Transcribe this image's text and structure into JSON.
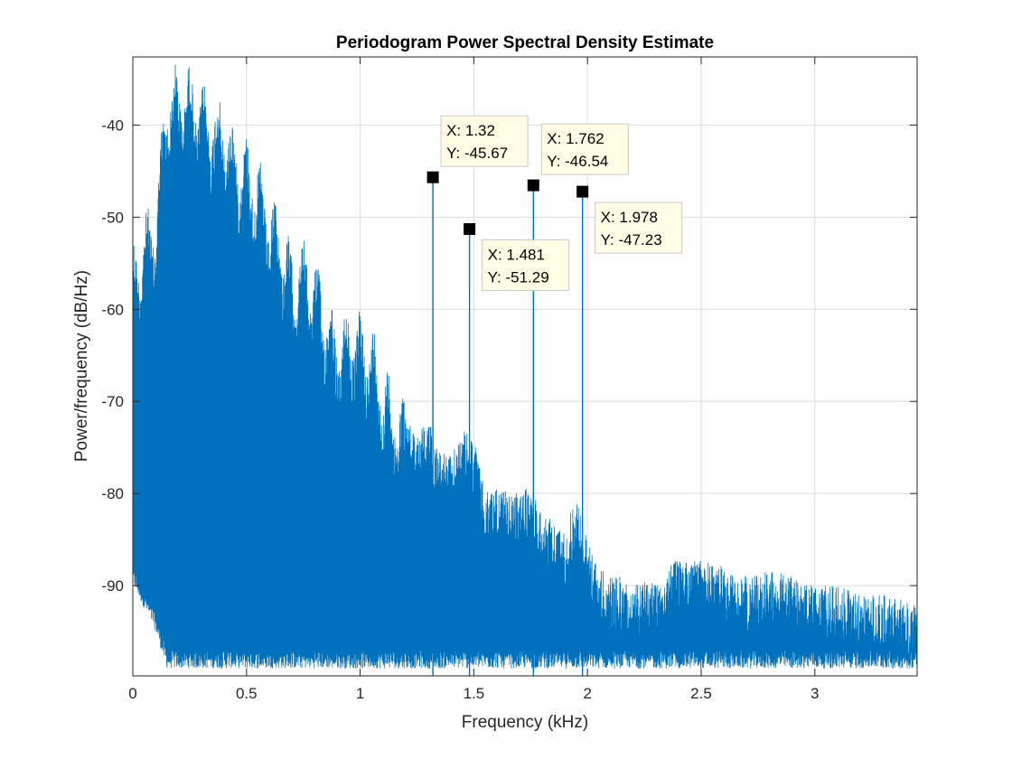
{
  "chart_data": {
    "type": "line",
    "title": "Periodogram Power Spectral Density Estimate",
    "xlabel": "Frequency (kHz)",
    "ylabel": "Power/frequency (dB/Hz)",
    "xlim": [
      0,
      3.45
    ],
    "ylim": [
      -99.8,
      -32.6
    ],
    "xticks": [
      0,
      0.5,
      1,
      1.5,
      2,
      2.5,
      3
    ],
    "xtick_labels": [
      "0",
      "0.5",
      "1",
      "1.5",
      "2",
      "2.5",
      "3"
    ],
    "yticks": [
      -40,
      -50,
      -60,
      -70,
      -80,
      -90
    ],
    "ytick_labels": [
      "-40",
      "-50",
      "-60",
      "-70",
      "-80",
      "-90"
    ],
    "grid": true,
    "line_color": "#0072BD",
    "series": [
      {
        "envelope_x": [
          0,
          0.1,
          0.15,
          0.2,
          0.25,
          0.3,
          0.35,
          0.4,
          0.45,
          0.5,
          0.55,
          0.6,
          0.65,
          0.7,
          0.75,
          0.8,
          0.85,
          0.9,
          0.95,
          1.0,
          1.05,
          1.1,
          1.15,
          1.2,
          1.25,
          1.3,
          1.35,
          1.4,
          1.45,
          1.5,
          1.55,
          1.6,
          1.65,
          1.7,
          1.75,
          1.8,
          1.85,
          1.9,
          1.95,
          2.0,
          2.05,
          2.1,
          2.15,
          2.2,
          2.3,
          2.4,
          2.5,
          2.6,
          2.7,
          2.8,
          2.9,
          3.0,
          3.1,
          3.2,
          3.3,
          3.45
        ],
        "envelope_upper": [
          -55,
          -50,
          -37,
          -36,
          -36,
          -38,
          -39,
          -40,
          -43,
          -44,
          -46,
          -50,
          -52,
          -56,
          -55,
          -57,
          -60,
          -64,
          -62,
          -63,
          -64,
          -68,
          -71,
          -72,
          -73,
          -72,
          -75,
          -76,
          -73,
          -74,
          -80,
          -79,
          -80,
          -80,
          -79,
          -82,
          -83,
          -84,
          -80,
          -85,
          -88,
          -89,
          -89,
          -90,
          -89,
          -87,
          -87,
          -88,
          -89,
          -88,
          -89,
          -90,
          -90,
          -91,
          -91,
          -92
        ],
        "envelope_lower": [
          -90,
          -95,
          -99,
          -99,
          -99,
          -99,
          -99,
          -99,
          -99,
          -99,
          -99,
          -99,
          -99,
          -99,
          -99,
          -99,
          -99,
          -99,
          -99,
          -99,
          -99,
          -99,
          -99,
          -99,
          -99,
          -99,
          -99,
          -99,
          -99,
          -99,
          -99,
          -99,
          -99,
          -99,
          -99,
          -99,
          -99,
          -99,
          -99,
          -99,
          -99,
          -99,
          -99,
          -99,
          -99,
          -99,
          -99,
          -99,
          -99,
          -99,
          -99,
          -99,
          -99,
          -99,
          -99,
          -99
        ],
        "peaks": [
          {
            "x": 1.32,
            "y": -45.67
          },
          {
            "x": 1.481,
            "y": -51.29
          },
          {
            "x": 1.762,
            "y": -46.54
          },
          {
            "x": 1.978,
            "y": -47.23
          }
        ]
      }
    ],
    "datatips": [
      {
        "x": 1.32,
        "y": -45.67,
        "x_text": "X: 1.32",
        "y_text": "Y: -45.67",
        "placement": "above-right"
      },
      {
        "x": 1.481,
        "y": -51.29,
        "x_text": "X: 1.481",
        "y_text": "Y: -51.29",
        "placement": "below-right"
      },
      {
        "x": 1.762,
        "y": -46.54,
        "x_text": "X: 1.762",
        "y_text": "Y: -46.54",
        "placement": "above-right"
      },
      {
        "x": 1.978,
        "y": -47.23,
        "x_text": "X: 1.978",
        "y_text": "Y: -47.23",
        "placement": "below-right"
      }
    ]
  }
}
